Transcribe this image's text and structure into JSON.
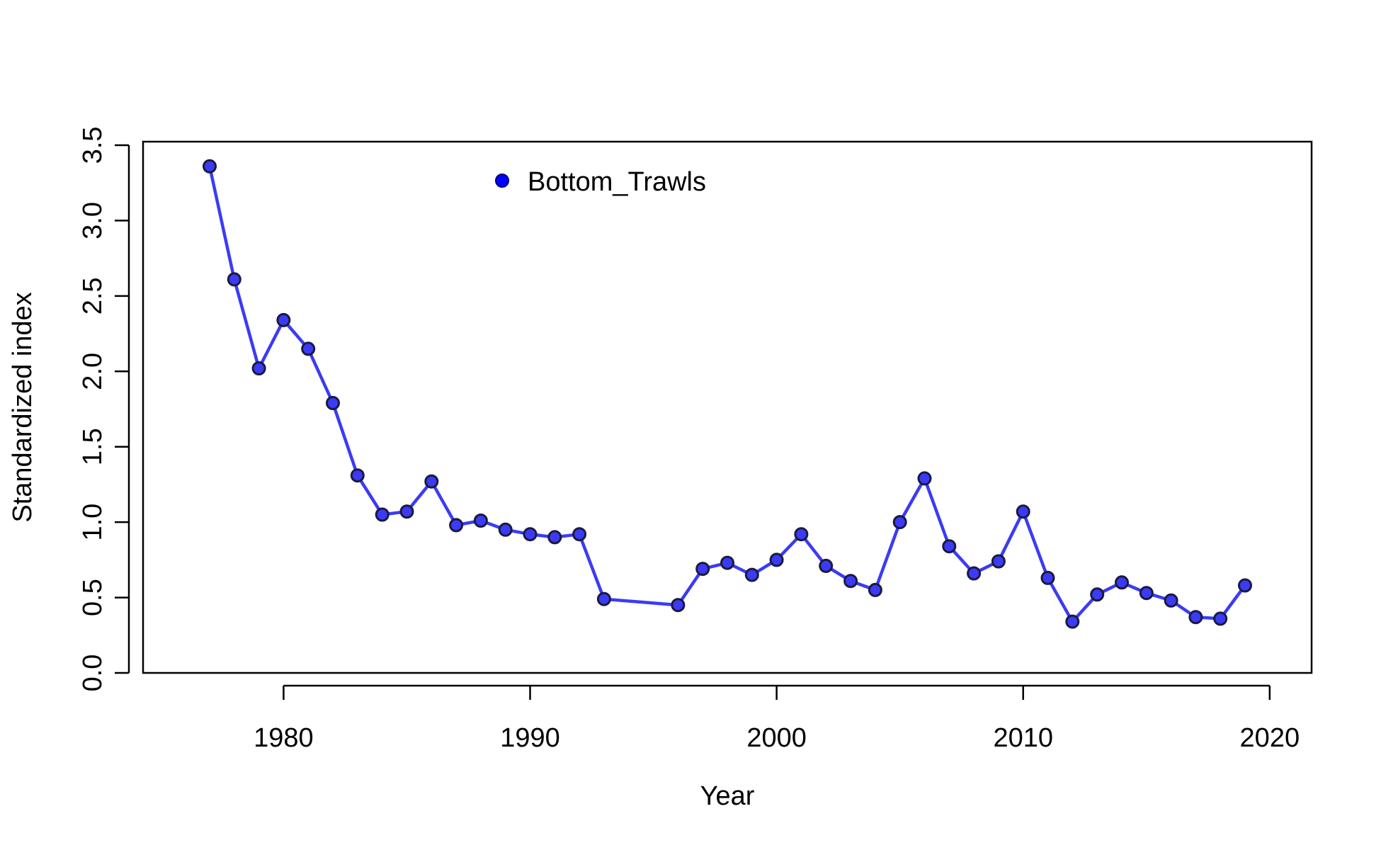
{
  "chart_data": {
    "type": "line",
    "title": "",
    "xlabel": "Year",
    "ylabel": "Standardized index",
    "xlim": [
      1974.3,
      2021.7
    ],
    "ylim": [
      0.0,
      3.5
    ],
    "xticks": [
      1980,
      1990,
      2000,
      2010,
      2020
    ],
    "yticks": [
      0.0,
      0.5,
      1.0,
      1.5,
      2.0,
      2.5,
      3.0,
      3.5
    ],
    "xtick_labels": [
      "1980",
      "1990",
      "2000",
      "2010",
      "2020"
    ],
    "ytick_labels": [
      "0.0",
      "0.5",
      "1.0",
      "1.5",
      "2.0",
      "2.5",
      "3.0",
      "3.5"
    ],
    "legend_position": "top-center",
    "grid": false,
    "series": [
      {
        "name": "Bottom_Trawls",
        "color": "#3b3bf5",
        "marker": "circle",
        "x": [
          1977,
          1978,
          1979,
          1980,
          1981,
          1982,
          1983,
          1984,
          1985,
          1986,
          1987,
          1988,
          1989,
          1990,
          1991,
          1992,
          1993,
          1996,
          1997,
          1998,
          1999,
          2000,
          2001,
          2002,
          2003,
          2004,
          2005,
          2006,
          2007,
          2008,
          2009,
          2010,
          2011,
          2012,
          2013,
          2014,
          2015,
          2016,
          2017,
          2018,
          2019
        ],
        "y": [
          3.36,
          2.61,
          2.02,
          2.34,
          2.15,
          1.79,
          1.31,
          1.05,
          1.07,
          1.27,
          0.98,
          1.01,
          0.95,
          0.92,
          0.9,
          0.92,
          0.49,
          0.45,
          0.69,
          0.73,
          0.65,
          0.75,
          0.92,
          0.71,
          0.61,
          0.55,
          1.0,
          1.29,
          0.84,
          0.66,
          0.74,
          1.07,
          0.63,
          0.34,
          0.52,
          0.6,
          0.53,
          0.48,
          0.37,
          0.36,
          0.58
        ]
      }
    ]
  }
}
